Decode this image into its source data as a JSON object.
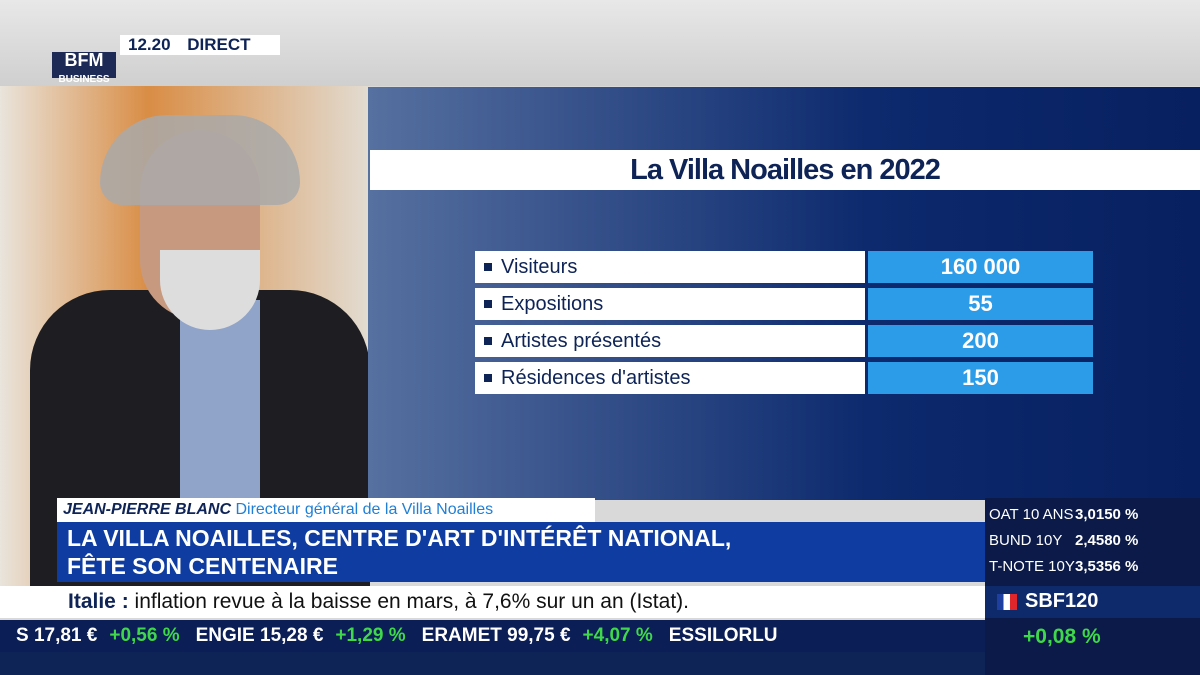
{
  "header": {
    "logo": "BFM",
    "logo_sub": "BUSINESS",
    "time": "12.20",
    "status": "DIRECT"
  },
  "infographic": {
    "title": "La Villa Noailles en 2022",
    "rows": [
      [
        "Visiteurs",
        "160 000"
      ],
      [
        "Expositions",
        "55"
      ],
      [
        "Artistes présentés",
        "200"
      ],
      [
        "Résidences d'artistes",
        "150"
      ]
    ]
  },
  "lower_third": {
    "name": "JEAN-PIERRE BLANC",
    "role": "Directeur général de la Villa Noailles",
    "headline": [
      "LA VILLA NOAILLES, CENTRE D'ART D'INTÉRÊT NATIONAL,",
      "FÊTE SON CENTENAIRE"
    ]
  },
  "news_ticker": {
    "label": "Italie :",
    "text": "inflation revue à la baisse en mars, à 7,6% sur un an (Istat)."
  },
  "stock_ticker": [
    [
      "S 17,81 €",
      "+0,56 %"
    ],
    [
      "ENGIE 15,28 €",
      "+1,29 %"
    ],
    [
      "ERAMET 99,75 €",
      "+4,07 %"
    ],
    [
      "ESSILORLU",
      ""
    ]
  ],
  "markets": {
    "rates": [
      [
        "OAT 10 ANS",
        "3,0150 %"
      ],
      [
        "BUND 10Y",
        "2,4580 %"
      ],
      [
        "T-NOTE 10Y",
        "3,5356 %"
      ]
    ],
    "index": {
      "name": "SBF120",
      "change": "+0,08 %"
    }
  }
}
